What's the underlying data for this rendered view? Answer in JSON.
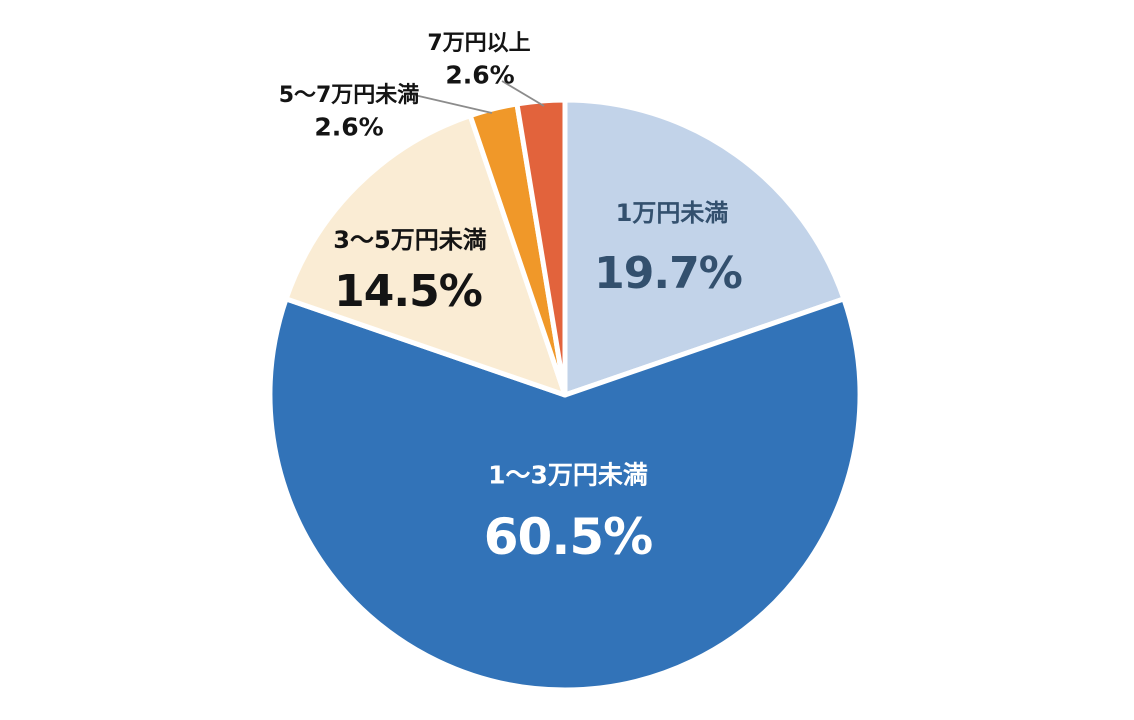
{
  "chart_data": {
    "type": "pie",
    "title": "",
    "unit": "%",
    "start_angle_deg": -90,
    "direction": "clockwise",
    "background_color": "#ffffff",
    "separator_color": "#ffffff",
    "leader_line_color": "#8c8c8c",
    "slices": [
      {
        "label": "1万円未満",
        "value": 19.7,
        "display": "19.7%",
        "color": "#c2d3e9",
        "label_color": "#33506e"
      },
      {
        "label": "1〜3万円未満",
        "value": 60.5,
        "display": "60.5%",
        "color": "#3273b8",
        "label_color": "#ffffff"
      },
      {
        "label": "3〜5万円未満",
        "value": 14.5,
        "display": "14.5%",
        "color": "#faecd4",
        "label_color": "#141414"
      },
      {
        "label": "5〜7万円未満",
        "value": 2.6,
        "display": "2.6%",
        "color": "#f09829",
        "label_color": "#141414"
      },
      {
        "label": "7万円以上",
        "value": 2.6,
        "display": "2.6%",
        "color": "#e2633c",
        "label_color": "#141414"
      }
    ]
  }
}
